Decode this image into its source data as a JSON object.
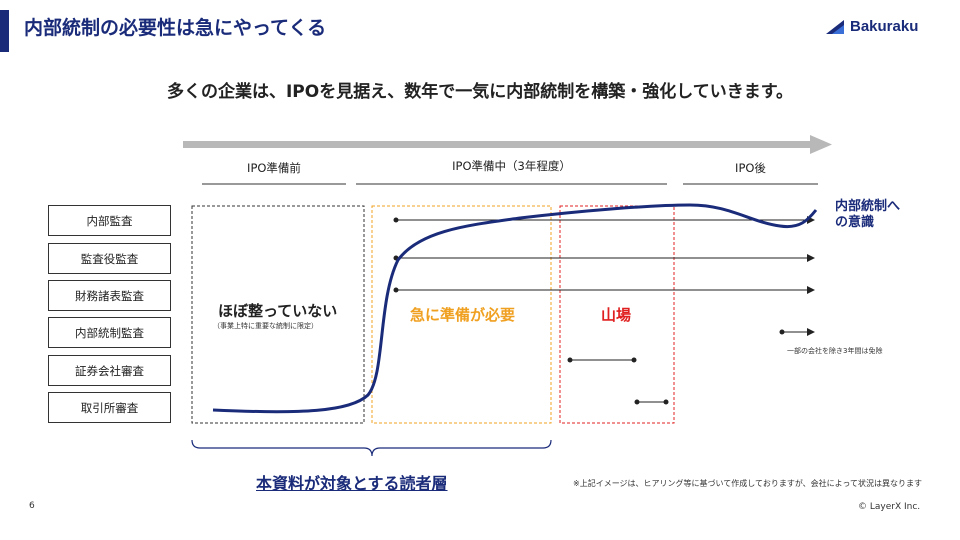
{
  "header": {
    "title": "内部統制の必要性は急にやってくる",
    "logo_text": "Bakuraku",
    "logo_icon": "bakuraku-triangle-icon"
  },
  "subtitle": "多くの企業は、IPOを見据え、数年で一気に内部統制を構築・強化していきます。",
  "phases": [
    {
      "label": "IPO準備前"
    },
    {
      "label": "IPO準備中（3年程度）"
    },
    {
      "label": "IPO後"
    }
  ],
  "rows": [
    {
      "label": "内部監査"
    },
    {
      "label": "監査役監査"
    },
    {
      "label": "財務諸表監査"
    },
    {
      "label": "内部統制監査"
    },
    {
      "label": "証券会社審査"
    },
    {
      "label": "取引所審査"
    }
  ],
  "zones": {
    "pre": {
      "title": "ほぼ整っていない",
      "note": "（事業上特に重要な統制に限定）",
      "border_color": "#333333"
    },
    "urgent": {
      "title": "急に準備が必要",
      "color": "#f0a020"
    },
    "peak": {
      "title": "山場",
      "color": "#e02020"
    }
  },
  "curve": {
    "label_line1": "内部統制へ",
    "label_line2": "の意識",
    "color": "#1a2b7a"
  },
  "exemption_note": "一部の会社を除き3年間は免除",
  "brace_label": "本資料が対象とする読者層",
  "disclaimer": "※上記イメージは、ヒアリング等に基づいて作成しておりますが、会社によって状況は異なります",
  "page_number": "6",
  "copyright": "© LayerX Inc.",
  "colors": {
    "navy": "#1a2b7a",
    "arrow_gray": "#b8b8b8"
  }
}
